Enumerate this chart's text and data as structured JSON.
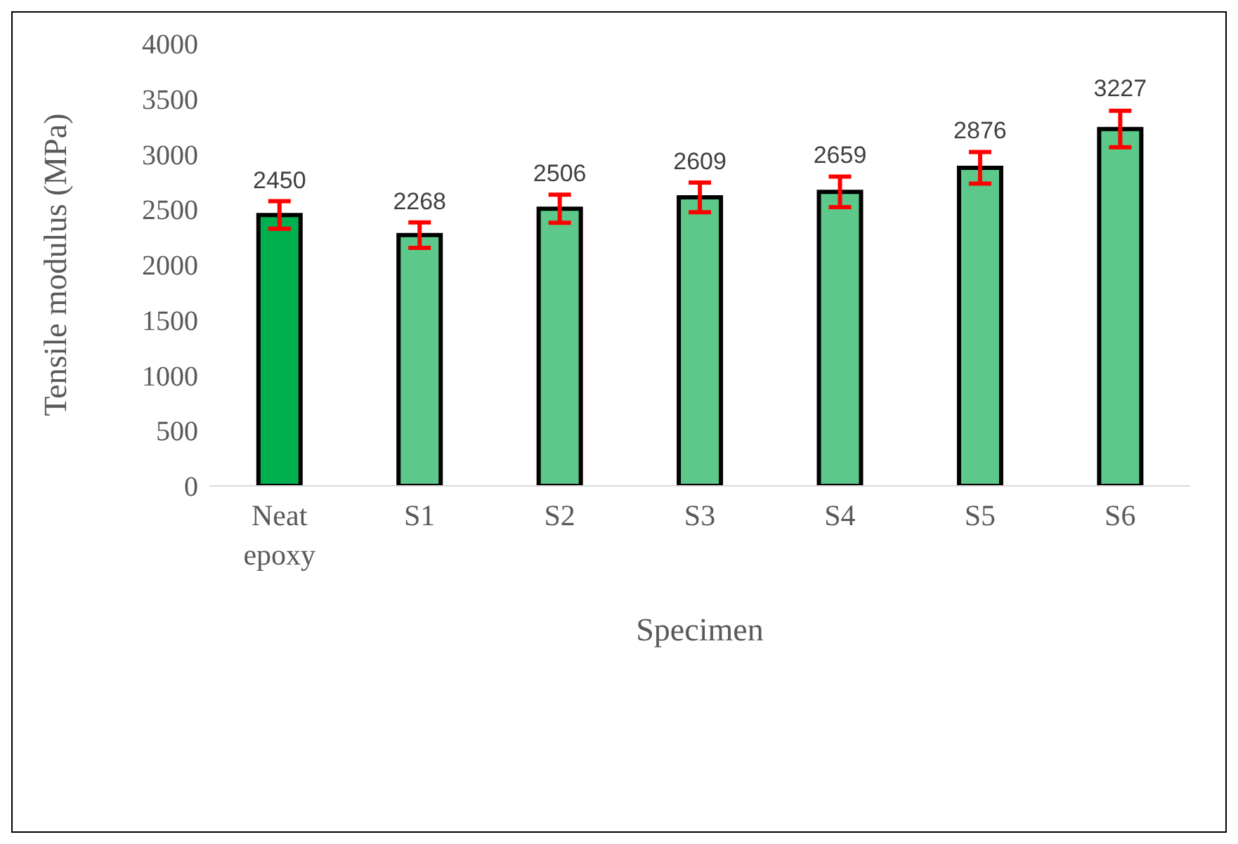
{
  "chart_data": {
    "type": "bar",
    "xlabel": "Specimen",
    "ylabel": "Tensile modulus (MPa)",
    "categories": [
      "Neat epoxy",
      "S1",
      "S2",
      "S3",
      "S4",
      "S5",
      "S6"
    ],
    "values": [
      2450,
      2268,
      2506,
      2609,
      2659,
      2876,
      3227
    ],
    "colors": [
      "#00b050",
      "#5cc98a",
      "#5cc98a",
      "#5cc98a",
      "#5cc98a",
      "#5cc98a",
      "#5cc98a"
    ],
    "errors": [
      125,
      115,
      127,
      134,
      138,
      143,
      165
    ],
    "ylim": [
      0,
      4000
    ],
    "yticks": [
      0,
      500,
      1000,
      1500,
      2000,
      2500,
      3000,
      3500,
      4000
    ],
    "grid": false,
    "data_labels": true
  }
}
